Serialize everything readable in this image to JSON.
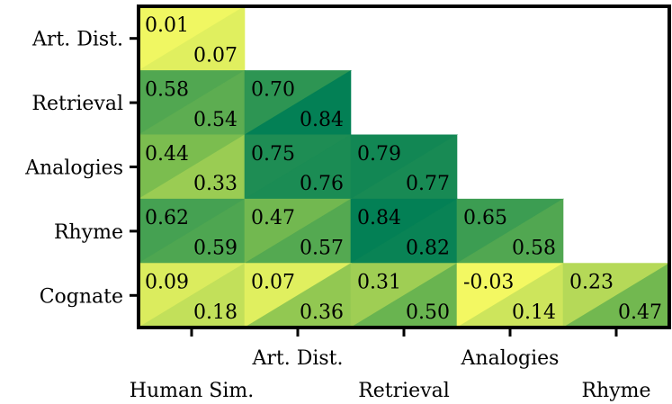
{
  "chart_data": {
    "type": "heatmap",
    "title": "",
    "subtitle": "",
    "note": "Lower-triangular correlation heatmap; each cell split diagonally into two values (upper-left and lower-right).",
    "row_labels": [
      "Art. Dist.",
      "Retrieval",
      "Analogies",
      "Rhyme",
      "Cognate"
    ],
    "col_labels": [
      "Human Sim.",
      "Art. Dist.",
      "Retrieval",
      "Analogies",
      "Rhyme"
    ],
    "values_upper_left": [
      [
        0.01,
        null,
        null,
        null,
        null
      ],
      [
        0.58,
        0.7,
        null,
        null,
        null
      ],
      [
        0.44,
        0.75,
        0.79,
        null,
        null
      ],
      [
        0.62,
        0.47,
        0.84,
        0.65,
        null
      ],
      [
        0.09,
        0.07,
        0.31,
        -0.03,
        0.23
      ]
    ],
    "values_lower_right": [
      [
        0.07,
        null,
        null,
        null,
        null
      ],
      [
        0.54,
        0.84,
        null,
        null,
        null
      ],
      [
        0.33,
        0.76,
        0.77,
        null,
        null
      ],
      [
        0.59,
        0.57,
        0.82,
        0.58,
        null
      ],
      [
        0.18,
        0.36,
        0.5,
        0.14,
        0.47
      ]
    ],
    "labels_upper_left": [
      [
        "0.01",
        null,
        null,
        null,
        null
      ],
      [
        "0.58",
        "0.70",
        null,
        null,
        null
      ],
      [
        "0.44",
        "0.75",
        "0.79",
        null,
        null
      ],
      [
        "0.62",
        "0.47",
        "0.84",
        "0.65",
        null
      ],
      [
        "0.09",
        "0.07",
        "0.31",
        "-0.03",
        "0.23"
      ]
    ],
    "labels_lower_right": [
      [
        "0.07",
        null,
        null,
        null,
        null
      ],
      [
        "0.54",
        "0.84",
        null,
        null,
        null
      ],
      [
        "0.33",
        "0.76",
        "0.77",
        null,
        null
      ],
      [
        "0.59",
        "0.57",
        "0.82",
        "0.58",
        null
      ],
      [
        "0.18",
        "0.36",
        "0.50",
        "0.14",
        "0.47"
      ]
    ],
    "colormap": "summer_r",
    "color_range": [
      0,
      0.85
    ],
    "colors": {
      "low": "#f3f862",
      "mid": "#80bf4f",
      "high": "#007e55",
      "frame": "#000000"
    },
    "legend": "none"
  }
}
